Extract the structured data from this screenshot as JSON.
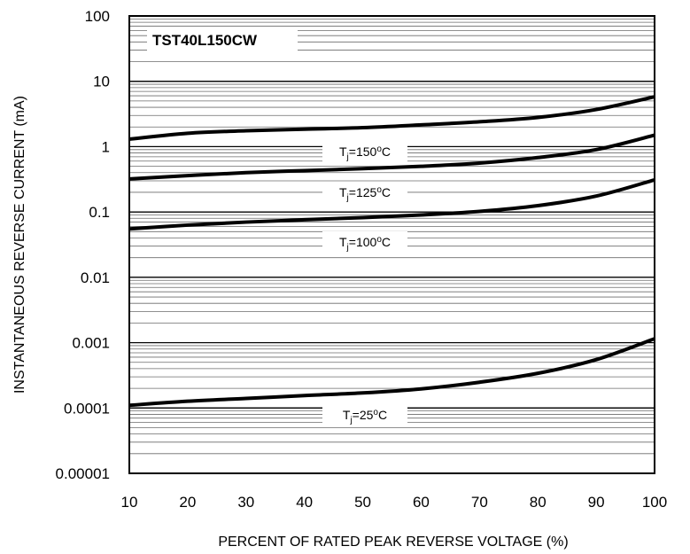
{
  "chart_data": {
    "type": "line",
    "title": "TST40L150CW",
    "xlabel": "PERCENT OF RATED PEAK REVERSE VOLTAGE (%)",
    "ylabel": "INSTANTANEOUS  REVERSE CURRENT (mA)",
    "x_ticks": [
      "10",
      "20",
      "30",
      "40",
      "50",
      "60",
      "70",
      "80",
      "90",
      "100"
    ],
    "y_ticks": [
      "100",
      "10",
      "1",
      "0.1",
      "0.01",
      "0.001",
      "0.0001",
      "0.00001"
    ],
    "xlim": [
      10,
      100
    ],
    "ylim": [
      1e-05,
      100
    ],
    "y_scale": "log",
    "grid": "horizontal minor log gridlines",
    "x": [
      10,
      20,
      30,
      40,
      50,
      60,
      70,
      80,
      90,
      100
    ],
    "series": [
      {
        "temperature": "150",
        "values": [
          1.3,
          1.6,
          1.75,
          1.85,
          1.95,
          2.15,
          2.4,
          2.8,
          3.7,
          5.8
        ]
      },
      {
        "temperature": "125",
        "values": [
          0.32,
          0.36,
          0.4,
          0.43,
          0.46,
          0.5,
          0.56,
          0.68,
          0.9,
          1.5
        ]
      },
      {
        "temperature": "100",
        "values": [
          0.055,
          0.063,
          0.07,
          0.076,
          0.082,
          0.09,
          0.102,
          0.125,
          0.175,
          0.31
        ]
      },
      {
        "temperature": "25",
        "values": [
          0.00011,
          0.000127,
          0.00014,
          0.000155,
          0.00017,
          0.000196,
          0.000248,
          0.00034,
          0.00055,
          0.00115
        ]
      }
    ],
    "curve_labels": [
      {
        "prefix": "T",
        "sub": "j",
        "eq": "=",
        "temp": "150",
        "deg": "o",
        "unit": "C"
      },
      {
        "prefix": "T",
        "sub": "j",
        "eq": "=",
        "temp": "125",
        "deg": "o",
        "unit": "C"
      },
      {
        "prefix": "T",
        "sub": "j",
        "eq": "=",
        "temp": "100",
        "deg": "o",
        "unit": "C"
      },
      {
        "prefix": "T",
        "sub": "j",
        "eq": "=",
        "temp": "25",
        "deg": "o",
        "unit": "C"
      }
    ]
  }
}
